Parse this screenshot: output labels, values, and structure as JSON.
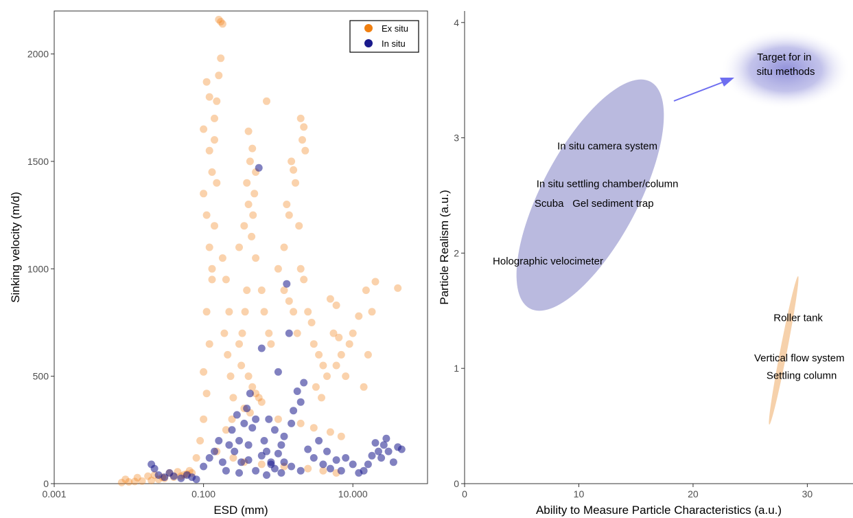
{
  "chart_data": [
    {
      "type": "scatter",
      "xlabel": "ESD (mm)",
      "ylabel": "Sinking velocity (m/d)",
      "x_scale": "log",
      "xlim": [
        0.001,
        100
      ],
      "ylim": [
        0,
        2200
      ],
      "x_ticks": [
        0.001,
        0.1,
        10
      ],
      "x_tick_labels": [
        "0.001",
        "0.100",
        "10.000"
      ],
      "y_ticks": [
        0,
        500,
        1000,
        1500,
        2000
      ],
      "y_tick_labels": [
        "0",
        "500",
        "1000",
        "1500",
        "2000"
      ],
      "grid": false,
      "legend_position": "top-right",
      "colors": {
        "ex_situ": "#f07f10",
        "in_situ": "#1a1a8c"
      },
      "series": [
        {
          "name": "Ex situ",
          "color": "#f07f10",
          "points": [
            [
              0.008,
              5
            ],
            [
              0.01,
              8
            ],
            [
              0.012,
              10
            ],
            [
              0.015,
              12
            ],
            [
              0.02,
              15
            ],
            [
              0.025,
              20
            ],
            [
              0.03,
              25
            ],
            [
              0.04,
              30
            ],
            [
              0.05,
              35
            ],
            [
              0.06,
              45
            ],
            [
              0.07,
              50
            ],
            [
              0.009,
              20
            ],
            [
              0.013,
              28
            ],
            [
              0.018,
              35
            ],
            [
              0.022,
              40
            ],
            [
              0.028,
              30
            ],
            [
              0.035,
              50
            ],
            [
              0.045,
              55
            ],
            [
              0.055,
              42
            ],
            [
              0.065,
              60
            ],
            [
              0.08,
              120
            ],
            [
              0.09,
              200
            ],
            [
              0.1,
              300
            ],
            [
              0.11,
              420
            ],
            [
              0.1,
              520
            ],
            [
              0.12,
              650
            ],
            [
              0.11,
              800
            ],
            [
              0.13,
              950
            ],
            [
              0.12,
              1100
            ],
            [
              0.11,
              1250
            ],
            [
              0.1,
              1350
            ],
            [
              0.13,
              1450
            ],
            [
              0.12,
              1550
            ],
            [
              0.1,
              1650
            ],
            [
              0.14,
              1700
            ],
            [
              0.12,
              1800
            ],
            [
              0.11,
              1870
            ],
            [
              0.15,
              1400
            ],
            [
              0.14,
              1200
            ],
            [
              0.13,
              1000
            ],
            [
              0.16,
              2160
            ],
            [
              0.17,
              2150
            ],
            [
              0.18,
              2140
            ],
            [
              0.17,
              1980
            ],
            [
              0.16,
              1900
            ],
            [
              0.15,
              1780
            ],
            [
              0.14,
              1600
            ],
            [
              0.18,
              1050
            ],
            [
              0.2,
              950
            ],
            [
              0.22,
              800
            ],
            [
              0.19,
              700
            ],
            [
              0.21,
              600
            ],
            [
              0.23,
              500
            ],
            [
              0.25,
              400
            ],
            [
              0.24,
              300
            ],
            [
              0.2,
              250
            ],
            [
              0.3,
              1100
            ],
            [
              0.35,
              1200
            ],
            [
              0.4,
              1300
            ],
            [
              0.38,
              1400
            ],
            [
              0.42,
              1500
            ],
            [
              0.45,
              1560
            ],
            [
              0.4,
              1640
            ],
            [
              0.5,
              1450
            ],
            [
              0.48,
              1350
            ],
            [
              0.46,
              1250
            ],
            [
              0.44,
              1150
            ],
            [
              0.5,
              1050
            ],
            [
              0.38,
              900
            ],
            [
              0.36,
              800
            ],
            [
              0.33,
              700
            ],
            [
              0.3,
              650
            ],
            [
              0.32,
              550
            ],
            [
              0.4,
              500
            ],
            [
              0.45,
              450
            ],
            [
              0.5,
              420
            ],
            [
              0.55,
              400
            ],
            [
              0.6,
              380
            ],
            [
              0.35,
              350
            ],
            [
              0.42,
              330
            ],
            [
              0.7,
              1780
            ],
            [
              0.6,
              900
            ],
            [
              0.65,
              800
            ],
            [
              0.75,
              700
            ],
            [
              0.8,
              650
            ],
            [
              1.0,
              1000
            ],
            [
              1.2,
              1100
            ],
            [
              1.3,
              1300
            ],
            [
              1.4,
              1250
            ],
            [
              1.5,
              1500
            ],
            [
              1.6,
              1460
            ],
            [
              1.7,
              1400
            ],
            [
              1.2,
              900
            ],
            [
              1.4,
              850
            ],
            [
              1.6,
              800
            ],
            [
              2.0,
              1700
            ],
            [
              2.2,
              1660
            ],
            [
              2.1,
              1600
            ],
            [
              2.3,
              1550
            ],
            [
              1.9,
              1200
            ],
            [
              2.0,
              1000
            ],
            [
              2.2,
              950
            ],
            [
              1.8,
              700
            ],
            [
              2.5,
              800
            ],
            [
              2.8,
              750
            ],
            [
              3.0,
              650
            ],
            [
              3.5,
              600
            ],
            [
              4.0,
              550
            ],
            [
              4.5,
              500
            ],
            [
              3.2,
              450
            ],
            [
              3.8,
              400
            ],
            [
              5.0,
              860
            ],
            [
              6.0,
              830
            ],
            [
              5.5,
              700
            ],
            [
              6.5,
              680
            ],
            [
              7.0,
              600
            ],
            [
              6.0,
              550
            ],
            [
              8.0,
              500
            ],
            [
              9.0,
              650
            ],
            [
              10.0,
              700
            ],
            [
              12.0,
              780
            ],
            [
              15.0,
              900
            ],
            [
              20.0,
              940
            ],
            [
              40.0,
              910
            ],
            [
              18.0,
              800
            ],
            [
              16.0,
              600
            ],
            [
              14.0,
              450
            ],
            [
              1.0,
              300
            ],
            [
              2.0,
              280
            ],
            [
              3.0,
              260
            ],
            [
              5.0,
              240
            ],
            [
              7.0,
              220
            ],
            [
              0.15,
              150
            ],
            [
              0.25,
              120
            ],
            [
              0.35,
              100
            ],
            [
              0.6,
              90
            ],
            [
              1.2,
              80
            ],
            [
              2.5,
              70
            ],
            [
              4.0,
              60
            ],
            [
              6.0,
              50
            ]
          ]
        },
        {
          "name": "In situ",
          "color": "#1a1a8c",
          "points": [
            [
              0.02,
              90
            ],
            [
              0.022,
              70
            ],
            [
              0.025,
              40
            ],
            [
              0.03,
              30
            ],
            [
              0.035,
              50
            ],
            [
              0.04,
              35
            ],
            [
              0.05,
              25
            ],
            [
              0.06,
              40
            ],
            [
              0.07,
              30
            ],
            [
              0.08,
              20
            ],
            [
              0.1,
              80
            ],
            [
              0.12,
              120
            ],
            [
              0.14,
              150
            ],
            [
              0.16,
              200
            ],
            [
              0.18,
              100
            ],
            [
              0.2,
              60
            ],
            [
              0.22,
              180
            ],
            [
              0.24,
              250
            ],
            [
              0.26,
              150
            ],
            [
              0.28,
              320
            ],
            [
              0.3,
              200
            ],
            [
              0.32,
              100
            ],
            [
              0.35,
              280
            ],
            [
              0.38,
              350
            ],
            [
              0.4,
              180
            ],
            [
              0.42,
              420
            ],
            [
              0.45,
              260
            ],
            [
              0.5,
              300
            ],
            [
              0.55,
              1470
            ],
            [
              0.6,
              630
            ],
            [
              0.65,
              200
            ],
            [
              0.7,
              150
            ],
            [
              0.75,
              300
            ],
            [
              0.8,
              100
            ],
            [
              0.9,
              250
            ],
            [
              1.0,
              520
            ],
            [
              1.1,
              180
            ],
            [
              1.2,
              220
            ],
            [
              1.3,
              930
            ],
            [
              1.4,
              700
            ],
            [
              1.5,
              280
            ],
            [
              1.6,
              340
            ],
            [
              1.8,
              430
            ],
            [
              2.0,
              380
            ],
            [
              2.2,
              470
            ],
            [
              2.5,
              160
            ],
            [
              3.0,
              120
            ],
            [
              3.5,
              200
            ],
            [
              4.0,
              90
            ],
            [
              4.5,
              150
            ],
            [
              5.0,
              70
            ],
            [
              6.0,
              110
            ],
            [
              7.0,
              60
            ],
            [
              8.0,
              120
            ],
            [
              10.0,
              90
            ],
            [
              12.0,
              50
            ],
            [
              14.0,
              60
            ],
            [
              16.0,
              90
            ],
            [
              18.0,
              130
            ],
            [
              20.0,
              190
            ],
            [
              22.0,
              150
            ],
            [
              24.0,
              120
            ],
            [
              26.0,
              180
            ],
            [
              28.0,
              210
            ],
            [
              30.0,
              150
            ],
            [
              35.0,
              100
            ],
            [
              40.0,
              170
            ],
            [
              45.0,
              160
            ],
            [
              0.3,
              50
            ],
            [
              0.5,
              60
            ],
            [
              0.7,
              40
            ],
            [
              0.9,
              70
            ],
            [
              1.1,
              50
            ],
            [
              1.5,
              80
            ],
            [
              2.0,
              60
            ],
            [
              0.4,
              110
            ],
            [
              0.6,
              130
            ],
            [
              0.8,
              90
            ],
            [
              1.0,
              140
            ],
            [
              1.2,
              100
            ]
          ]
        }
      ]
    },
    {
      "type": "scatter",
      "xlabel": "Ability to Measure Particle Characteristics (a.u.)",
      "ylabel": "Particle Realism (a.u.)",
      "xlim": [
        0,
        34
      ],
      "ylim": [
        0,
        4.1
      ],
      "x_ticks": [
        0,
        10,
        20,
        30
      ],
      "x_tick_labels": [
        "0",
        "10",
        "20",
        "30"
      ],
      "y_ticks": [
        0,
        1,
        2,
        3,
        4
      ],
      "y_tick_labels": [
        "0",
        "1",
        "2",
        "3",
        "4"
      ],
      "grid": false,
      "colors": {
        "in_situ_region": "#b3b3dc",
        "ex_situ_region": "#f5cfa7",
        "arrow": "#6e6ef0",
        "target_glow": "#8c8cd8"
      },
      "regions": [
        {
          "center": [
            11,
            2.5
          ],
          "semi_axes_data": [
            5,
            1.0
          ],
          "description_only": true
        },
        {
          "center": [
            27.5,
            1.15
          ],
          "semi_axes_data": [
            1,
            0.65
          ],
          "description_only": true
        }
      ],
      "labels": [
        {
          "text": "In situ camera system",
          "x": 12.5,
          "y": 2.93
        },
        {
          "text": "In situ settling chamber/column",
          "x": 12.5,
          "y": 2.6
        },
        {
          "text": "Scuba",
          "x": 7.4,
          "y": 2.43
        },
        {
          "text": "Gel sediment trap",
          "x": 13.0,
          "y": 2.43
        },
        {
          "text": "Holographic velocimeter",
          "x": 7.3,
          "y": 1.93
        },
        {
          "text": "Roller tank",
          "x": 29.2,
          "y": 1.44
        },
        {
          "text": "Vertical flow system",
          "x": 29.3,
          "y": 1.09
        },
        {
          "text": "Settling column",
          "x": 29.5,
          "y": 0.94
        }
      ],
      "target_label": [
        "Target for in",
        "situ methods"
      ],
      "target": {
        "x": 29,
        "y": 3.6
      },
      "arrow": {
        "from": [
          18,
          3.35
        ],
        "to": [
          23.5,
          3.55
        ]
      }
    }
  ]
}
